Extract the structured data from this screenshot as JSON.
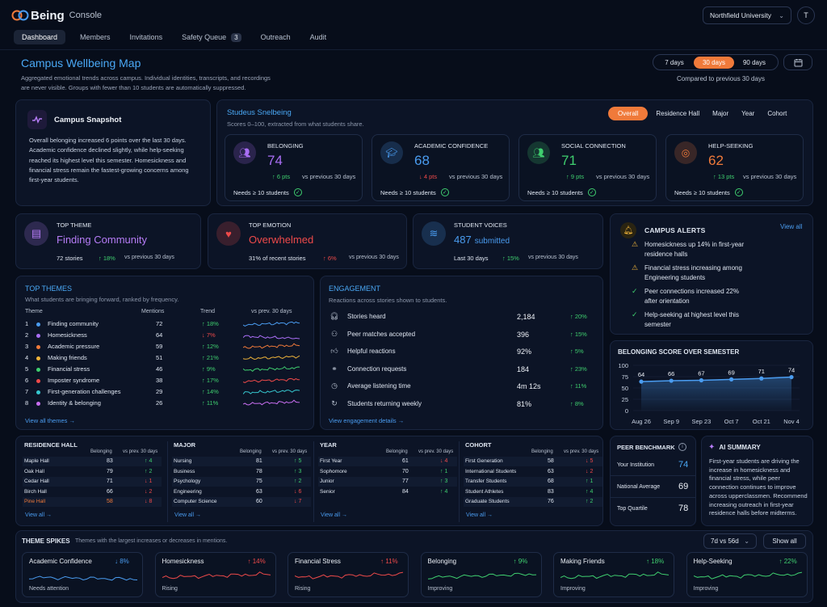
{
  "brand": {
    "name": "Being",
    "product": "Console"
  },
  "org_select": "Northfield University",
  "user_initial": "T",
  "nav": [
    {
      "label": "Dashboard"
    },
    {
      "label": "Members"
    },
    {
      "label": "Invitations"
    },
    {
      "label": "Safety Queue",
      "badge": "3"
    },
    {
      "label": "Outreach"
    },
    {
      "label": "Audit"
    }
  ],
  "page": {
    "title": "Campus Wellbeing Map",
    "desc1": "Aggregated emotional trends across campus. Individual identities, transcripts, and recordings",
    "desc2": "are never visible. Groups with fewer than 10 students are automatically suppressed.",
    "ranges": [
      "7 days",
      "30 days",
      "90 days"
    ],
    "compare": "Compared to previous 30 days"
  },
  "snapshot": {
    "title": "Campus Snapshot",
    "text": "Overall belonging increased 6 points over the last 30 days. Academic confidence declined slightly, while help-seeking reached its highest level this semester. Homesickness and financial stress remain the fastest-growing concerns among first-year students."
  },
  "scores": {
    "title": "Studeus Snelbeing",
    "subtitle": "Scores 0–100, extracted from what students share.",
    "filters": [
      "Overall",
      "Residence Hall",
      "Major",
      "Year",
      "Cohort"
    ],
    "cards": [
      {
        "label": "BELONGING",
        "value": "74",
        "delta": "↑ 6 pts",
        "dir": "up",
        "vs": "vs previous 30 days",
        "need": "Needs ≥ 10 students",
        "color": "#a96ef5",
        "icon": "people-icon"
      },
      {
        "label": "ACADEMIC CONFIDENCE",
        "value": "68",
        "delta": "↓ 4 pts",
        "dir": "down",
        "vs": "vs previous 30 days",
        "need": "Needs ≥ 10 students",
        "color": "#4a9cf0",
        "icon": "graduation-cap-icon"
      },
      {
        "label": "SOCIAL CONNECTION",
        "value": "71",
        "delta": "↑ 9 pts",
        "dir": "up",
        "vs": "vs previous 30 days",
        "need": "Needs ≥ 10 students",
        "color": "#3fcf6f",
        "icon": "group-icon"
      },
      {
        "label": "HELP-SEEKING",
        "value": "62",
        "delta": "↑ 13 pts",
        "dir": "up",
        "vs": "vs previous 30 days",
        "need": "Needs ≥ 10 students",
        "color": "#f07a3a",
        "icon": "lifebuoy-icon"
      }
    ]
  },
  "kpis": [
    {
      "label": "TOP THEME",
      "value": "Finding Community",
      "note": "72 stories",
      "delta": "↑ 18%",
      "dir": "up",
      "vs": "vs previous 30 days",
      "color": "#b57cf6"
    },
    {
      "label": "TOP EMOTION",
      "value": "Overwhelmed",
      "note": "31% of recent stories",
      "delta": "↑ 6%",
      "dir": "down",
      "vs": "vs previous 30 days",
      "color": "#ef4a4a"
    },
    {
      "label": "STUDENT VOICES",
      "value": "487",
      "value2": "submitted",
      "note": "Last 30 days",
      "delta": "↑ 15%",
      "dir": "up",
      "vs": "vs previous 30 days",
      "color": "#4a9cf0"
    }
  ],
  "alerts": {
    "title": "CAMPUS ALERTS",
    "view": "View all",
    "items": [
      {
        "type": "warn",
        "text1": "Homesickness up 14% in first-year",
        "text2": "residence halls"
      },
      {
        "type": "warn",
        "text1": "Financial stress increasing among",
        "text2": "Engineering students"
      },
      {
        "type": "ok",
        "text1": "Peer connections increased 22%",
        "text2": "after orientation"
      },
      {
        "type": "ok",
        "text1": "Help-seeking at highest level this",
        "text2": "semester"
      }
    ]
  },
  "themes": {
    "title": "TOP THEMES",
    "subtitle": "What students are bringing forward, ranked by frequency.",
    "cols": [
      "Theme",
      "Mentions",
      "Trend",
      "vs prev. 30 days"
    ],
    "view": "View all themes →",
    "rows": [
      {
        "n": "1",
        "name": "Finding community",
        "m": "72",
        "t": "↑ 18%",
        "dir": "up",
        "c": "#4a9cf0"
      },
      {
        "n": "2",
        "name": "Homesickness",
        "m": "64",
        "t": "↓ 7%",
        "dir": "down",
        "c": "#a96ef5"
      },
      {
        "n": "3",
        "name": "Academic pressure",
        "m": "59",
        "t": "↑ 12%",
        "dir": "up",
        "c": "#f07a3a"
      },
      {
        "n": "4",
        "name": "Making friends",
        "m": "51",
        "t": "↑ 21%",
        "dir": "up",
        "c": "#f0b43a"
      },
      {
        "n": "5",
        "name": "Financial stress",
        "m": "46",
        "t": "↑ 9%",
        "dir": "up",
        "c": "#3fcf6f"
      },
      {
        "n": "6",
        "name": "Imposter syndrome",
        "m": "38",
        "t": "↑ 17%",
        "dir": "up",
        "c": "#ef4a4a"
      },
      {
        "n": "7",
        "name": "First-generation challenges",
        "m": "29",
        "t": "↑ 14%",
        "dir": "up",
        "c": "#36c8d0"
      },
      {
        "n": "8",
        "name": "Identity & belonging",
        "m": "26",
        "t": "↑ 11%",
        "dir": "up",
        "c": "#c86ef0"
      }
    ]
  },
  "engagement": {
    "title": "ENGAGEMENT",
    "subtitle": "Reactions across stories shown to students.",
    "view": "View engagement details →",
    "rows": [
      {
        "label": "Stories heard",
        "value": "2,184",
        "delta": "↑ 20%",
        "icon": "headphones-icon"
      },
      {
        "label": "Peer matches accepted",
        "value": "396",
        "delta": "↑ 15%",
        "icon": "peer-icon"
      },
      {
        "label": "Helpful reactions",
        "value": "92%",
        "delta": "↑ 5%",
        "icon": "thumbs-up-icon"
      },
      {
        "label": "Connection requests",
        "value": "184",
        "delta": "↑ 23%",
        "icon": "connect-icon"
      },
      {
        "label": "Average listening time",
        "value": "4m 12s",
        "delta": "↑ 11%",
        "icon": "clock-icon"
      },
      {
        "label": "Students returning weekly",
        "value": "81%",
        "delta": "↑ 8%",
        "icon": "return-icon"
      }
    ]
  },
  "belonging_chart": {
    "title": "BELONGING SCORE OVER SEMESTER"
  },
  "chart_data": {
    "type": "line",
    "title": "BELONGING SCORE OVER SEMESTER",
    "categories": [
      "Aug 26",
      "Sep 9",
      "Sep 23",
      "Oct 7",
      "Oct 21",
      "Nov 4"
    ],
    "values": [
      64,
      66,
      67,
      69,
      71,
      74
    ],
    "yticks": [
      0,
      25,
      50,
      75,
      100
    ],
    "ylim": [
      0,
      100
    ],
    "color": "#4a9cf0"
  },
  "breakdowns": [
    {
      "title": "RESIDENCE HALL",
      "cols": [
        "Belonging",
        "vs prev. 30 days"
      ],
      "rows": [
        {
          "name": "Maple Hall",
          "v": "83",
          "d": "↑ 4",
          "dir": "up"
        },
        {
          "name": "Oak Hall",
          "v": "79",
          "d": "↑ 2",
          "dir": "up"
        },
        {
          "name": "Cedar Hall",
          "v": "71",
          "d": "↓ 1",
          "dir": "down"
        },
        {
          "name": "Birch Hall",
          "v": "66",
          "d": "↓ 2",
          "dir": "down"
        },
        {
          "name": "Pine Hall",
          "v": "58",
          "d": "↓ 8",
          "dir": "down",
          "hl": true
        }
      ],
      "view": "View all →"
    },
    {
      "title": "MAJOR",
      "cols": [
        "Belonging",
        "vs prev. 30 days"
      ],
      "rows": [
        {
          "name": "Nursing",
          "v": "81",
          "d": "↑ 5",
          "dir": "up"
        },
        {
          "name": "Business",
          "v": "78",
          "d": "↑ 3",
          "dir": "up"
        },
        {
          "name": "Psychology",
          "v": "75",
          "d": "↑ 2",
          "dir": "up"
        },
        {
          "name": "Engineering",
          "v": "63",
          "d": "↓ 6",
          "dir": "down"
        },
        {
          "name": "Computer Science",
          "v": "60",
          "d": "↓ 7",
          "dir": "down"
        }
      ],
      "view": "View all →"
    },
    {
      "title": "YEAR",
      "cols": [
        "Belonging",
        "vs prev. 30 days"
      ],
      "rows": [
        {
          "name": "First Year",
          "v": "61",
          "d": "↓ 4",
          "dir": "down"
        },
        {
          "name": "Sophomore",
          "v": "70",
          "d": "↑ 1",
          "dir": "up"
        },
        {
          "name": "Junior",
          "v": "77",
          "d": "↑ 3",
          "dir": "up"
        },
        {
          "name": "Senior",
          "v": "84",
          "d": "↑ 4",
          "dir": "up"
        }
      ],
      "view": "View all →"
    },
    {
      "title": "COHORT",
      "cols": [
        "Belonging",
        "vs prev. 30 days"
      ],
      "rows": [
        {
          "name": "First Generation",
          "v": "58",
          "d": "↓ 5",
          "dir": "down"
        },
        {
          "name": "International Students",
          "v": "63",
          "d": "↓ 2",
          "dir": "down"
        },
        {
          "name": "Transfer Students",
          "v": "68",
          "d": "↑ 1",
          "dir": "up"
        },
        {
          "name": "Student Athletes",
          "v": "83",
          "d": "↑ 4",
          "dir": "up"
        },
        {
          "name": "Graduate Students",
          "v": "76",
          "d": "↑ 2",
          "dir": "up"
        }
      ],
      "view": "View all →"
    }
  ],
  "benchmark": {
    "title": "PEER BENCHMARK",
    "rows": [
      {
        "label": "Your Institution",
        "value": "74"
      },
      {
        "label": "National Average",
        "value": "69"
      },
      {
        "label": "Top Quartile",
        "value": "78"
      }
    ]
  },
  "ai": {
    "title": "AI SUMMARY",
    "text": "First-year students are driving the increase in homesickness and financial stress, while peer connection continues to improve across upperclassmen. Recommend increasing outreach in first-year residence halls before midterms."
  },
  "spikes": {
    "title": "THEME SPIKES",
    "subtitle": "Themes with the largest increases or decreases in mentions.",
    "select": "7d vs 56d",
    "show": "Show all",
    "cards": [
      {
        "name": "Academic Confidence",
        "delta": "↓ 8%",
        "dir": "down",
        "dcolor": "#4a9cf0",
        "status": "Needs attention",
        "line": "#4a9cf0"
      },
      {
        "name": "Homesickness",
        "delta": "↑ 14%",
        "dir": "up",
        "dcolor": "#ef4a4a",
        "status": "Rising",
        "line": "#ef4a4a"
      },
      {
        "name": "Financial Stress",
        "delta": "↑ 11%",
        "dir": "up",
        "dcolor": "#ef4a4a",
        "status": "Rising",
        "line": "#ef4a4a"
      },
      {
        "name": "Belonging",
        "delta": "↑ 9%",
        "dir": "up",
        "dcolor": "#3fcf6f",
        "status": "Improving",
        "line": "#3fcf6f"
      },
      {
        "name": "Making Friends",
        "delta": "↑ 18%",
        "dir": "up",
        "dcolor": "#3fcf6f",
        "status": "Improving",
        "line": "#3fcf6f"
      },
      {
        "name": "Help-Seeking",
        "delta": "↑ 22%",
        "dir": "up",
        "dcolor": "#3fcf6f",
        "status": "Improving",
        "line": "#3fcf6f"
      }
    ]
  }
}
